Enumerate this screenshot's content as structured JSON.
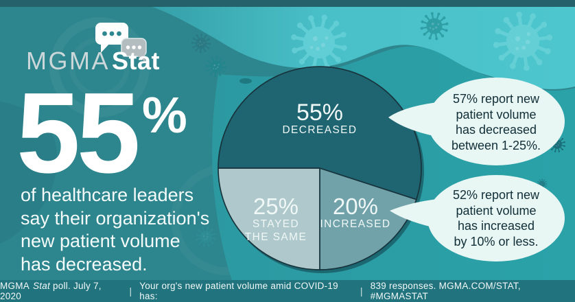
{
  "logo": {
    "brand": "MGMA",
    "product": "Stat"
  },
  "headline": {
    "stat_value": "55",
    "stat_unit": "%",
    "description": "of healthcare leaders\nsay their organization's\nnew patient volume\nhas decreased."
  },
  "chart_data": {
    "type": "pie",
    "title": "Your org's new patient volume amid COVID-19 has:",
    "slices": [
      {
        "label": "DECREASED",
        "value": 55,
        "pct_label": "55%",
        "color": "#1F6471"
      },
      {
        "label": "INCREASED",
        "value": 20,
        "pct_label": "20%",
        "color": "#71A2AA"
      },
      {
        "label": "STAYED THE SAME",
        "value": 25,
        "pct_label": "25%",
        "display_name": "STAYED\nTHE SAME",
        "color": "#AFC8CB"
      }
    ],
    "legend_position": "inside",
    "annotations": [
      "57% report new patient volume has decreased between 1-25%.",
      "52% report new patient volume has increased by 10% or less."
    ]
  },
  "callouts": {
    "bubble1": "57% report new\npatient volume\nhas decreased\nbetween 1-25%.",
    "bubble2": "52% report new\npatient volume\nhas increased\nby 10% or less."
  },
  "footer": {
    "brand": "MGMA",
    "brand_italic": "Stat",
    "poll_info": "poll. July 7, 2020",
    "separator": "|",
    "question": "Your org's new patient volume amid COVID-19 has:",
    "responses": "839 responses. MGMA.COM/STAT, #MGMASTAT"
  },
  "colors": {
    "background_dark_teal": "#2D858D",
    "background_mid_teal": "#2C9DA4",
    "background_light_cyan": "#4CC4CC",
    "top_bar": "#24616A",
    "bottom_bar": "#21737D",
    "bubble_fill": "#E8F6F4",
    "bubble_text": "#112E37",
    "pie_outline": "#17333C"
  }
}
